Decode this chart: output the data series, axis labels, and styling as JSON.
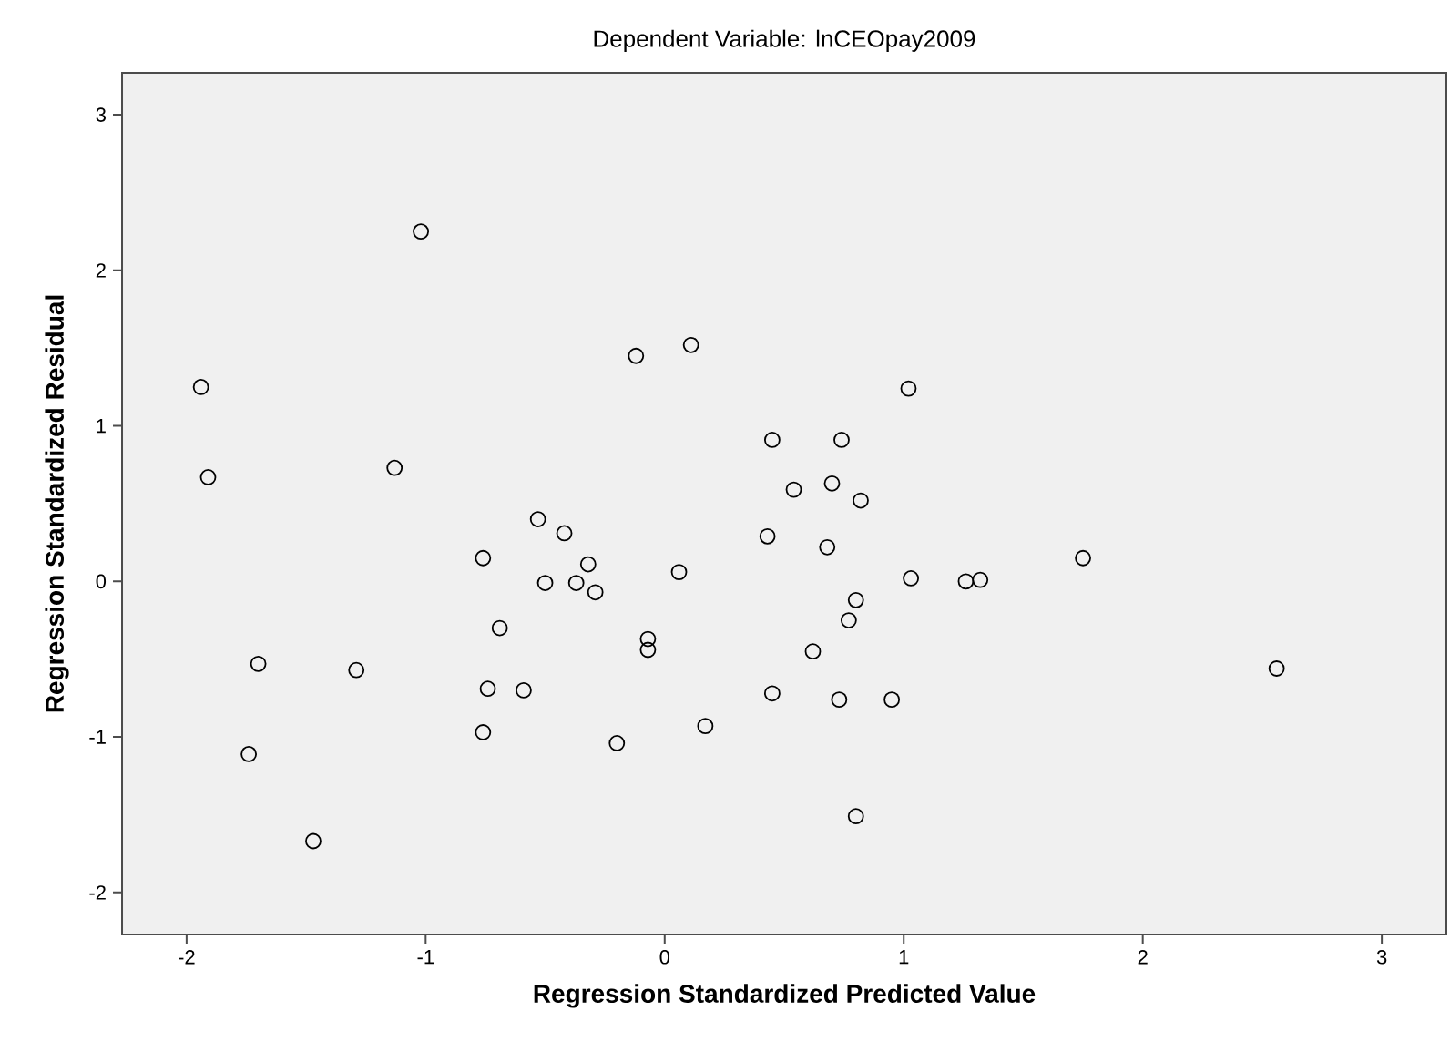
{
  "chart_data": {
    "type": "scatter",
    "title": "Dependent Variable: lnCEOpay2009",
    "xlabel": "Regression Standardized Predicted Value",
    "ylabel": "Regression Standardized Residual",
    "x": [
      -1.02,
      -0.12,
      -1.94,
      -1.13,
      -1.91,
      -0.53,
      -0.42,
      -0.76,
      -0.32,
      -0.5,
      -0.37,
      -0.29,
      -0.69,
      -0.07,
      -0.07,
      -1.7,
      -1.29,
      -0.74,
      -0.59,
      -0.76,
      -0.2,
      -1.74,
      -1.47,
      0.11,
      1.02,
      0.45,
      0.74,
      0.54,
      0.7,
      0.82,
      0.43,
      0.68,
      0.06,
      1.75,
      1.03,
      1.26,
      1.32,
      0.8,
      0.77,
      0.62,
      0.45,
      0.73,
      0.95,
      0.17,
      0.8,
      2.56
    ],
    "values": [
      2.25,
      1.45,
      1.25,
      0.73,
      0.67,
      0.4,
      0.31,
      0.15,
      0.11,
      -0.01,
      -0.01,
      -0.07,
      -0.3,
      -0.37,
      -0.44,
      -0.53,
      -0.57,
      -0.69,
      -0.7,
      -0.97,
      -1.04,
      -1.11,
      -1.67,
      1.52,
      1.24,
      0.91,
      0.91,
      0.59,
      0.63,
      0.52,
      0.29,
      0.22,
      0.06,
      0.15,
      0.02,
      0.0,
      0.01,
      -0.12,
      -0.25,
      -0.45,
      -0.72,
      -0.76,
      -0.76,
      -0.93,
      -1.51,
      -0.56
    ],
    "color": "#000000",
    "marker": "circle",
    "xlim": [
      -2.27,
      3.27
    ],
    "ylim": [
      -2.27,
      3.27
    ],
    "xticks": [
      -2,
      -1,
      0,
      1,
      2,
      3
    ],
    "yticks": [
      -2,
      -1,
      0,
      1,
      2,
      3
    ]
  }
}
